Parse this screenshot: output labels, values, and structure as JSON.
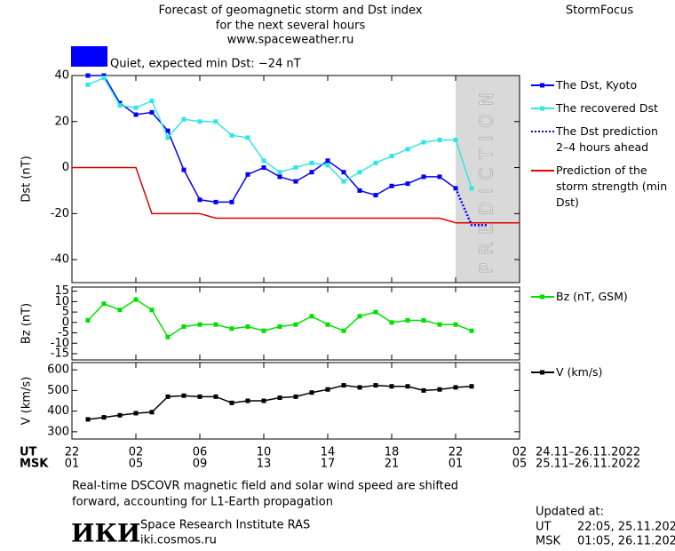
{
  "header": {
    "title_lines": [
      "Forecast of geomagnetic storm and Dst index",
      "for the next several hours",
      "www.spaceweather.ru"
    ],
    "brand": "StormFocus",
    "status": "Quiet, expected min Dst: −24 nT",
    "status_color": "#0000ff"
  },
  "chart_data": [
    {
      "type": "line",
      "ylabel": "Dst (nT)",
      "xlim": [
        0,
        28
      ],
      "xticks": [
        0,
        4,
        8,
        12,
        16,
        20,
        24,
        28
      ],
      "ylim": [
        -50,
        40
      ],
      "yticks": [
        40,
        20,
        0,
        -20,
        -40
      ],
      "shaded": {
        "xlim": [
          24,
          28
        ],
        "label": "PREDICTION",
        "color": "#d9d9d9"
      },
      "series": [
        {
          "name": "The Dst, Kyoto",
          "color": "#0000ff",
          "markers": true,
          "line_style": "solid",
          "x": [
            1,
            2,
            3,
            4,
            5,
            6,
            7,
            8,
            9,
            10,
            11,
            12,
            13,
            14,
            15,
            16,
            17,
            18,
            19,
            20,
            21,
            22,
            23,
            24
          ],
          "values": [
            40,
            40,
            28,
            23,
            24,
            16,
            -1,
            -14,
            -15,
            -15,
            -3,
            0,
            -4,
            -6,
            -2,
            3,
            -2,
            -10,
            -12,
            -8,
            -7,
            -4,
            -4,
            -9
          ]
        },
        {
          "name": "The recovered Dst",
          "color": "#33e6e6",
          "markers": true,
          "line_style": "solid",
          "x": [
            1,
            2,
            3,
            4,
            5,
            6,
            7,
            8,
            9,
            10,
            11,
            12,
            13,
            14,
            15,
            16,
            17,
            18,
            19,
            20,
            21,
            22,
            23,
            24,
            25
          ],
          "values": [
            36,
            39,
            27,
            26,
            29,
            13,
            21,
            20,
            20,
            14,
            13,
            3,
            -2,
            0,
            2,
            1,
            -6,
            -2,
            2,
            5,
            8,
            11,
            12,
            12,
            -9
          ]
        },
        {
          "name": "The Dst prediction 2–4 hours ahead",
          "color": "#0000ff",
          "markers": false,
          "line_style": "dotted",
          "x": [
            24,
            25,
            26
          ],
          "values": [
            -9,
            -25,
            -25
          ]
        },
        {
          "name": "Prediction of the storm strength (min Dst)",
          "color": "#e00000",
          "markers": false,
          "line_style": "solid",
          "x": [
            0,
            4,
            5,
            8,
            9,
            23,
            24,
            28
          ],
          "values": [
            0,
            0,
            -20,
            -20,
            -22,
            -22,
            -24,
            -24
          ]
        }
      ]
    },
    {
      "type": "line",
      "ylabel": "Bz (nT)",
      "xlim": [
        0,
        28
      ],
      "xticks": [
        0,
        4,
        8,
        12,
        16,
        20,
        24,
        28
      ],
      "ylim": [
        -18,
        17
      ],
      "yticks": [
        15,
        10,
        5,
        0,
        -5,
        -10,
        -15
      ],
      "series": [
        {
          "name": "Bz (nT, GSM)",
          "color": "#00e000",
          "markers": true,
          "line_style": "solid",
          "x": [
            1,
            2,
            3,
            4,
            5,
            6,
            7,
            8,
            9,
            10,
            11,
            12,
            13,
            14,
            15,
            16,
            17,
            18,
            19,
            20,
            21,
            22,
            23,
            24,
            25
          ],
          "values": [
            1,
            9,
            6,
            11,
            6,
            -7,
            -2,
            -1,
            -1,
            -3,
            -2,
            -4,
            -2,
            -1,
            3,
            -1,
            -4,
            3,
            5,
            0,
            1,
            1,
            -1,
            -1,
            -4
          ]
        }
      ]
    },
    {
      "type": "line",
      "ylabel": "V (km/s)",
      "xlim": [
        0,
        28
      ],
      "xticks": [
        {
          "value": 0,
          "label": "22"
        },
        {
          "value": 4,
          "label": "02"
        },
        {
          "value": 8,
          "label": "06"
        },
        {
          "value": 12,
          "label": "10"
        },
        {
          "value": 16,
          "label": "14"
        },
        {
          "value": 20,
          "label": "18"
        },
        {
          "value": 24,
          "label": "22"
        },
        {
          "value": 28,
          "label": "02"
        }
      ],
      "ylim": [
        265,
        635
      ],
      "yticks": [
        600,
        500,
        400,
        300
      ],
      "series": [
        {
          "name": "V (km/s)",
          "color": "#000000",
          "markers": true,
          "line_style": "solid",
          "x": [
            1,
            2,
            3,
            4,
            5,
            6,
            7,
            8,
            9,
            10,
            11,
            12,
            13,
            14,
            15,
            16,
            17,
            18,
            19,
            20,
            21,
            22,
            23,
            24,
            25
          ],
          "values": [
            360,
            370,
            380,
            390,
            395,
            470,
            475,
            470,
            470,
            440,
            450,
            450,
            465,
            470,
            490,
            505,
            525,
            515,
            525,
            520,
            520,
            500,
            505,
            515,
            520
          ]
        }
      ]
    }
  ],
  "time_axis": {
    "ut_label": "UT",
    "msk_label": "MSK",
    "msk_ticks": [
      "01",
      "05",
      "09",
      "13",
      "17",
      "21",
      "01",
      "05"
    ],
    "ut_range": "24.11–26.11.2022",
    "msk_range": "25.11–26.11.2022"
  },
  "footer": {
    "note_lines": [
      "Real-time DSCOVR magnetic field and solar wind speed are shifted",
      "forward, accounting for L1-Earth propagation"
    ],
    "logo": "ИКИ",
    "institute": "Space Research Institute RAS",
    "url": "iki.cosmos.ru",
    "updated_label": "Updated at:",
    "updated_ut": "22:05, 25.11.2022",
    "updated_msk": "01:05, 26.11.2022"
  }
}
